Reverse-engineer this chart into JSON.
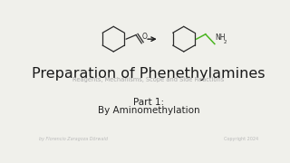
{
  "bg_color": "#f0f0eb",
  "title": "Preparation of Phenethylamines",
  "subtitle": "Reagents, Mechanisms, Scope and Side Reactions",
  "part_line1": "Part 1:",
  "part_line2": "By Aminomethylation",
  "footer_left": "by Florencio Zaragoza Dörwald",
  "footer_right": "Copyright 2024",
  "title_fontsize": 11.5,
  "subtitle_fontsize": 4.8,
  "part_fontsize": 7.5,
  "footer_fontsize": 3.5,
  "title_color": "#1a1a1a",
  "subtitle_color": "#aaaaaa",
  "part_color": "#222222",
  "footer_color": "#bbbbbb",
  "arrow_color": "#1a1a1a",
  "green_color": "#4ab520",
  "bond_color": "#2a2a2a",
  "lw": 0.9
}
